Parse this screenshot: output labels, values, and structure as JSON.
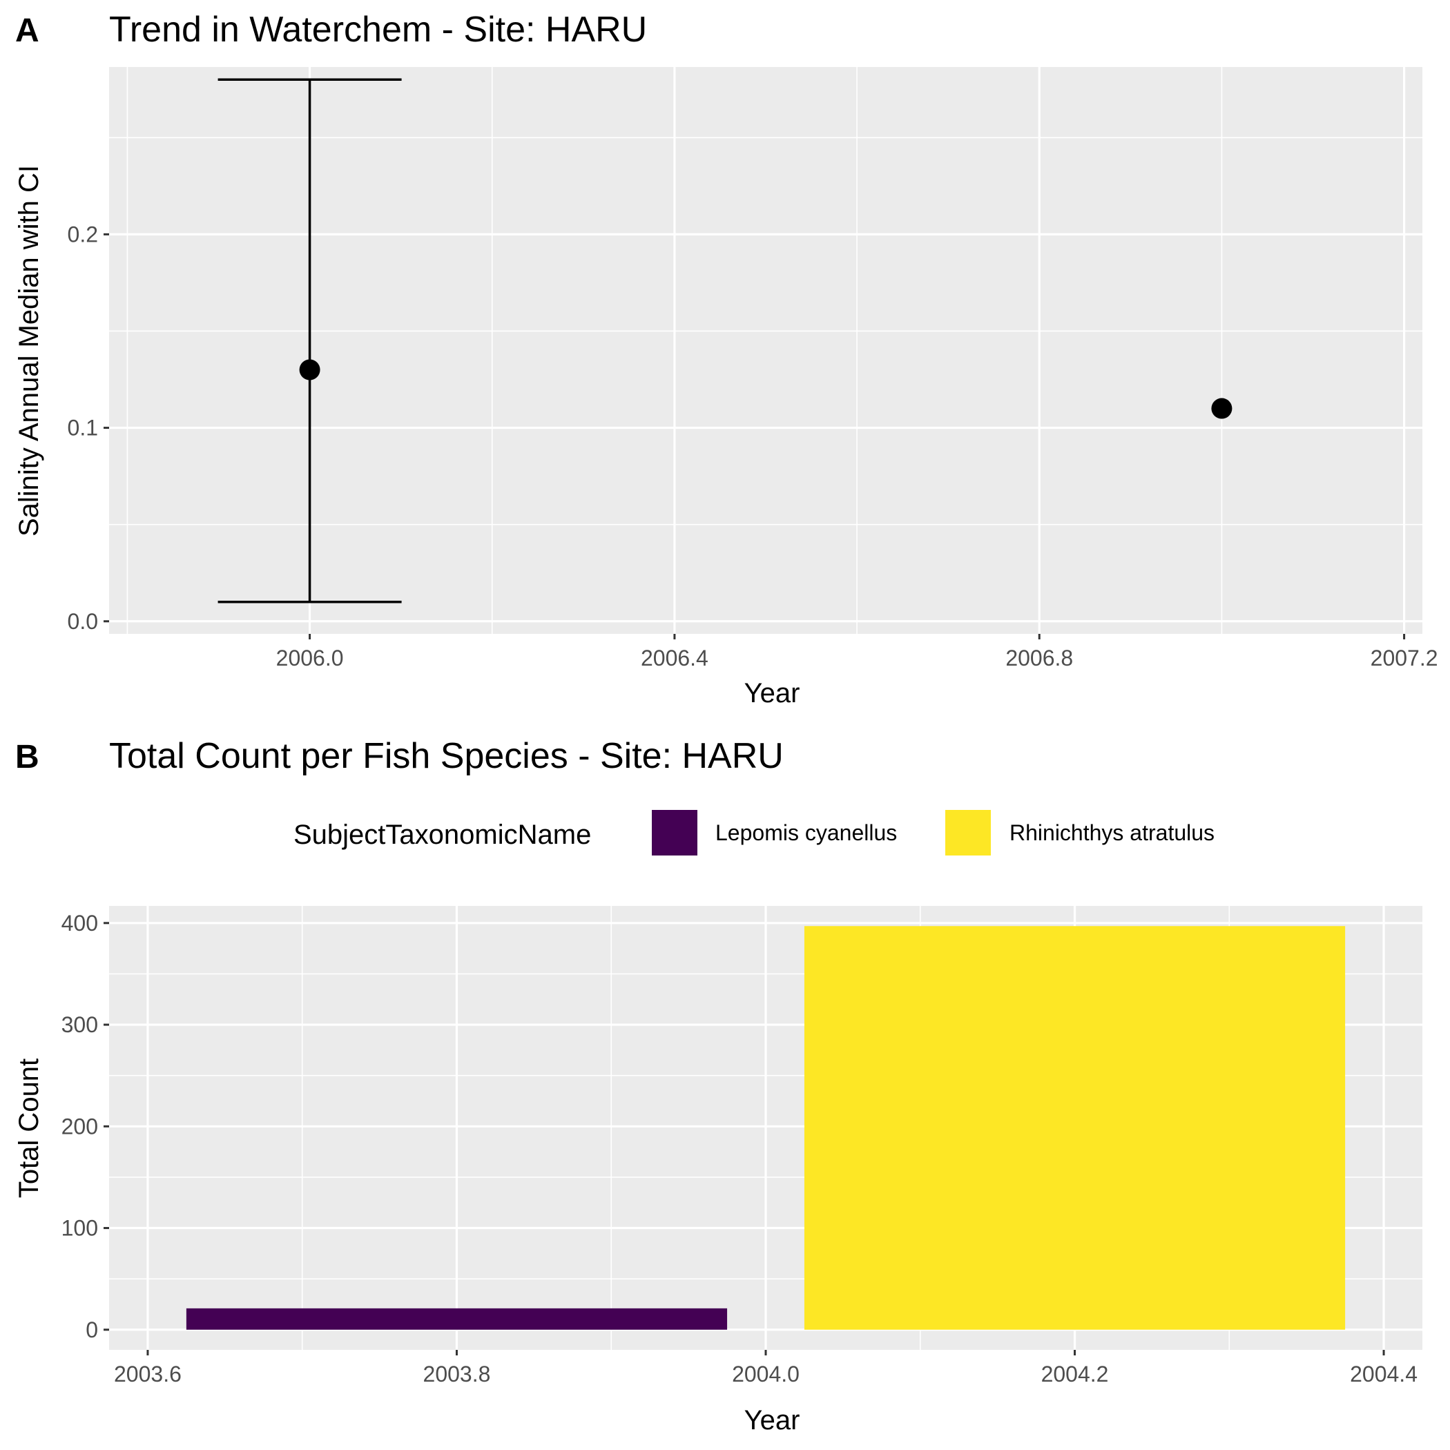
{
  "chart_data": [
    {
      "tag": "A",
      "type": "scatter",
      "title": "Trend in Waterchem - Site: HARU",
      "xlabel": "Year",
      "ylabel": "Salinity Annual Median with CI",
      "xlim": [
        2005.78,
        2007.22
      ],
      "ylim": [
        -0.0065,
        0.2865
      ],
      "x_ticks": [
        2006.0,
        2006.4,
        2006.8,
        2007.2
      ],
      "x_tick_labels": [
        "2006.0",
        "2006.4",
        "2006.8",
        "2007.2"
      ],
      "y_ticks": [
        0.0,
        0.1,
        0.2
      ],
      "y_tick_labels": [
        "0.0",
        "0.1",
        "0.2"
      ],
      "grid": true,
      "points": [
        {
          "x": 2006,
          "y": 0.13,
          "ci_low": 0.01,
          "ci_high": 0.28
        },
        {
          "x": 2007,
          "y": 0.11,
          "ci_low": null,
          "ci_high": null
        }
      ],
      "colors": {
        "panel_bg": "#EBEBEB",
        "grid": "#FFFFFF",
        "point": "#000000"
      }
    },
    {
      "tag": "B",
      "type": "bar",
      "title": "Total Count per Fish Species - Site: HARU",
      "xlabel": "Year",
      "ylabel": "Total Count",
      "xlim": [
        2003.575,
        2004.425
      ],
      "ylim": [
        -19.85,
        416.85
      ],
      "x_ticks": [
        2003.6,
        2003.8,
        2004.0,
        2004.2,
        2004.4
      ],
      "x_tick_labels": [
        "2003.6",
        "2003.8",
        "2004.0",
        "2004.2",
        "2004.4"
      ],
      "y_ticks": [
        0,
        100,
        200,
        300,
        400
      ],
      "y_tick_labels": [
        "0",
        "100",
        "200",
        "300",
        "400"
      ],
      "grid": true,
      "legend": {
        "title": "SubjectTaxonomicName",
        "placement": "top",
        "items": [
          {
            "label": "Lepomis cyanellus",
            "color": "#440154"
          },
          {
            "label": "Rhinichthys atratulus",
            "color": "#FDE725"
          }
        ]
      },
      "bars": [
        {
          "series": "Lepomis cyanellus",
          "x_start": 2003.625,
          "x_end": 2003.975,
          "value": 21,
          "color": "#440154"
        },
        {
          "series": "Rhinichthys atratulus",
          "x_start": 2004.025,
          "x_end": 2004.375,
          "value": 397,
          "color": "#FDE725"
        }
      ],
      "colors": {
        "panel_bg": "#EBEBEB",
        "grid": "#FFFFFF"
      }
    }
  ]
}
